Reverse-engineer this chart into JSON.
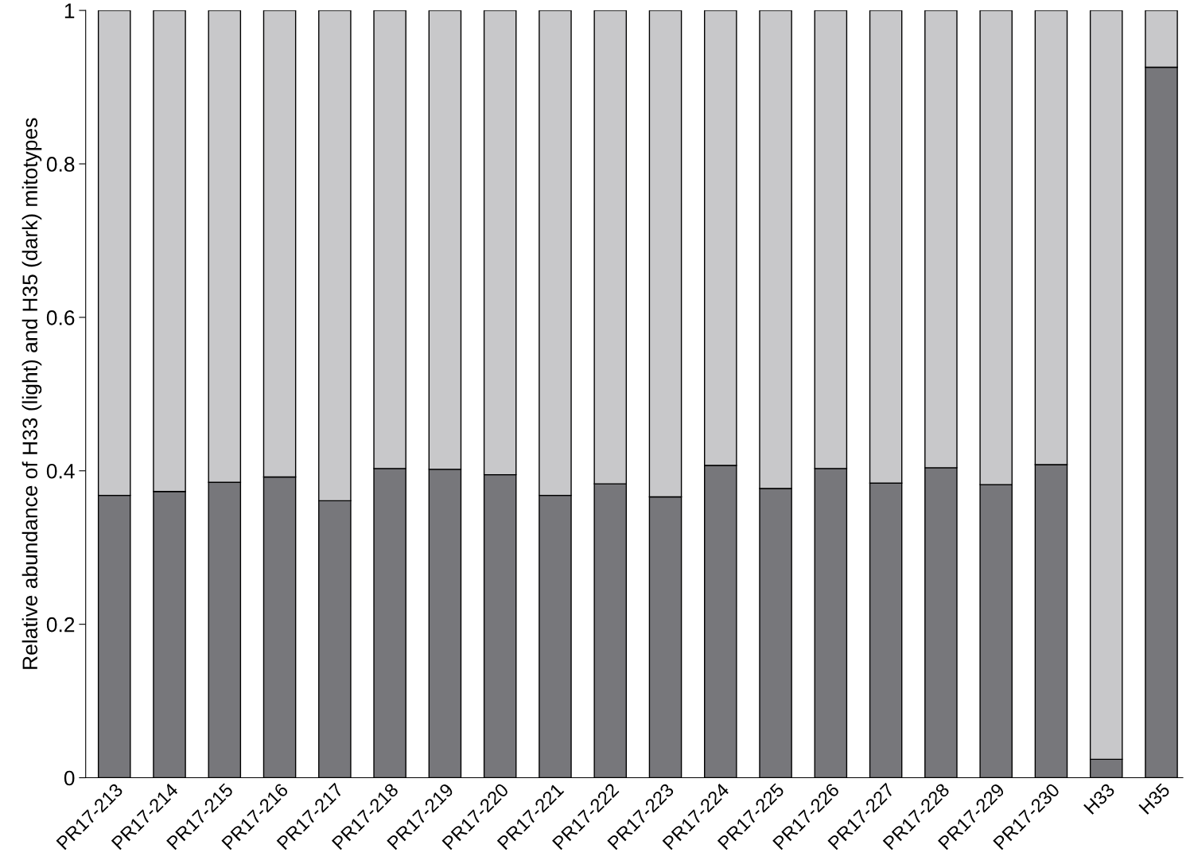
{
  "chart_data": {
    "type": "bar",
    "stacked": true,
    "ylabel": "Relative abundance of H33 (light) and H35 (dark) mitotypes",
    "categories": [
      "PR17-213",
      "PR17-214",
      "PR17-215",
      "PR17-216",
      "PR17-217",
      "PR17-218",
      "PR17-219",
      "PR17-220",
      "PR17-221",
      "PR17-222",
      "PR17-223",
      "PR17-224",
      "PR17-225",
      "PR17-226",
      "PR17-227",
      "PR17-228",
      "PR17-229",
      "PR17-230",
      "H33",
      "H35"
    ],
    "series": [
      {
        "color": "#77777b",
        "values": [
          0.368,
          0.373,
          0.385,
          0.392,
          0.361,
          0.403,
          0.402,
          0.395,
          0.368,
          0.383,
          0.366,
          0.407,
          0.377,
          0.403,
          0.384,
          0.404,
          0.382,
          0.408,
          0.024,
          0.926
        ]
      },
      {
        "color": "#c8c8ca",
        "values": [
          0.632,
          0.627,
          0.615,
          0.608,
          0.639,
          0.597,
          0.598,
          0.605,
          0.632,
          0.617,
          0.634,
          0.593,
          0.623,
          0.597,
          0.616,
          0.596,
          0.618,
          0.592,
          0.976,
          0.074
        ]
      }
    ],
    "ylim": [
      0,
      1
    ],
    "yticks": [
      0,
      0.2,
      0.4,
      0.6,
      0.8,
      1
    ],
    "grid": false,
    "legend": false
  }
}
